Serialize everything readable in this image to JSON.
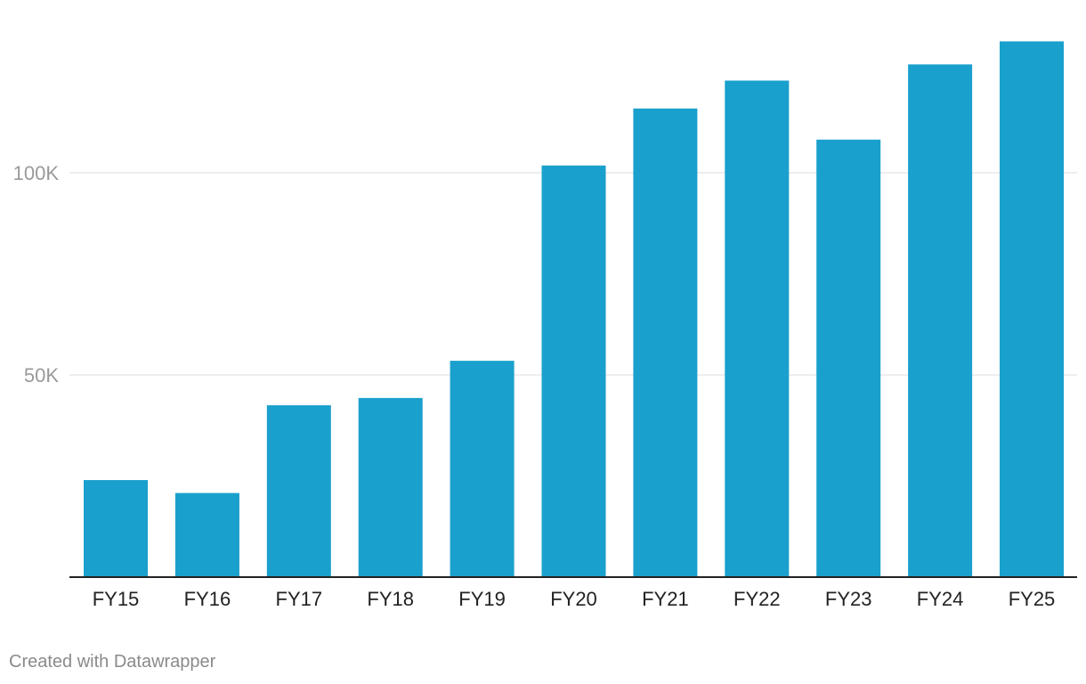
{
  "chart_data": {
    "type": "bar",
    "categories": [
      "FY15",
      "FY16",
      "FY17",
      "FY18",
      "FY19",
      "FY20",
      "FY21",
      "FY22",
      "FY23",
      "FY24",
      "FY25"
    ],
    "values": [
      24000,
      20800,
      42500,
      44300,
      53500,
      101800,
      115900,
      122800,
      108200,
      126800,
      132500
    ],
    "y_ticks": [
      {
        "value": 50000,
        "label": "50K"
      },
      {
        "value": 100000,
        "label": "100K"
      }
    ],
    "ylim": [
      0,
      140000
    ],
    "grid": true,
    "bar_color": "#1aa0cc"
  },
  "credit": "Created with Datawrapper"
}
